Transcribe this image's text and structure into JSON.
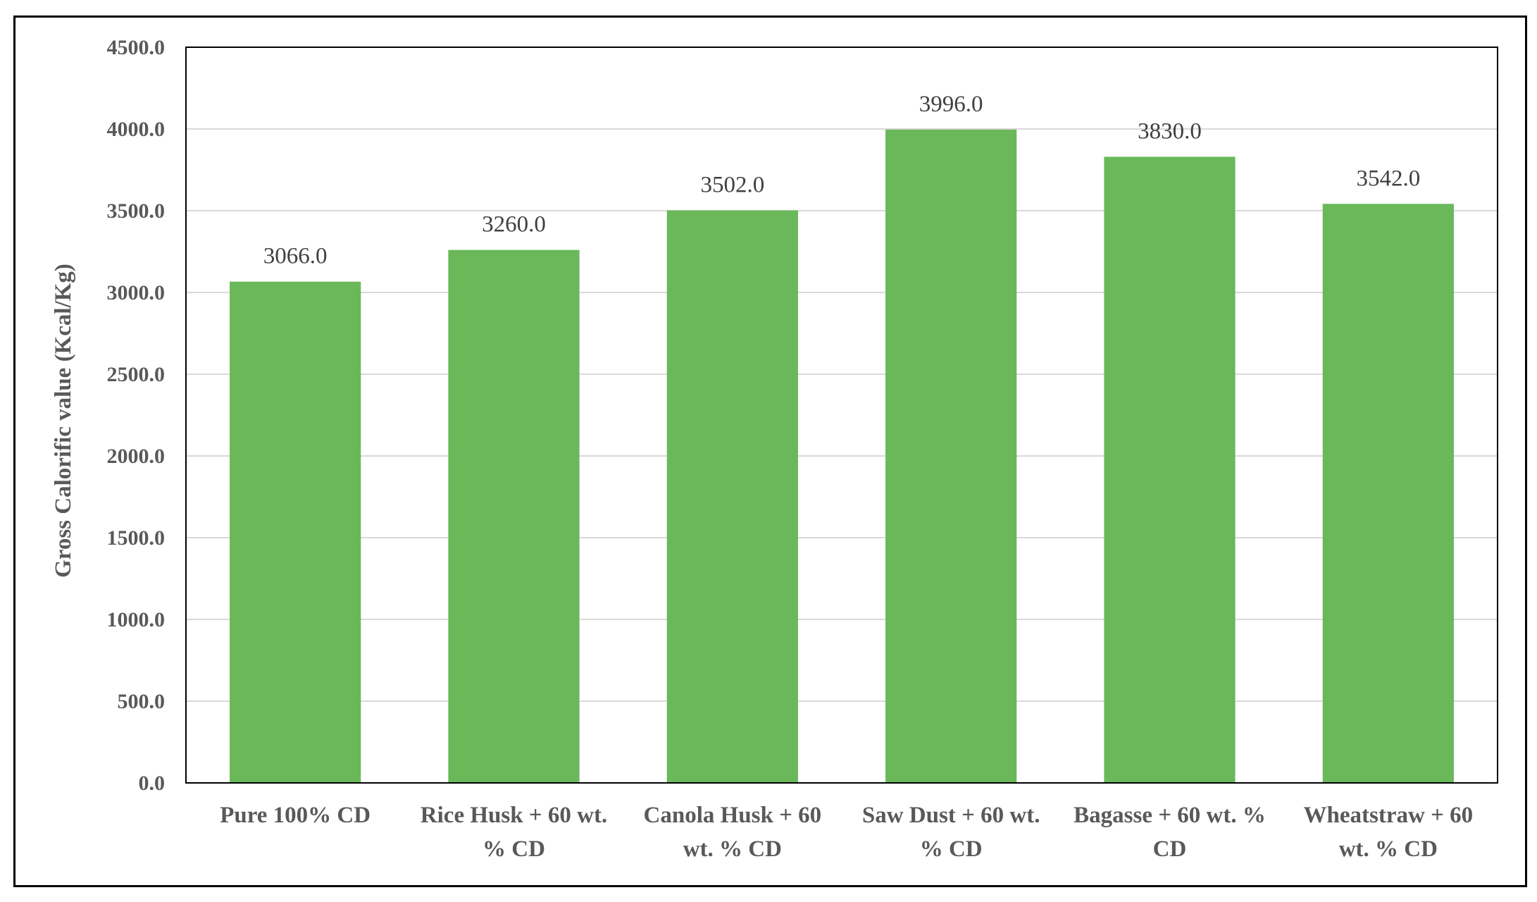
{
  "chart_data": {
    "type": "bar",
    "categories": [
      [
        "Pure 100% CD"
      ],
      [
        "Rice Husk + 60 wt.",
        "% CD"
      ],
      [
        "Canola Husk + 60",
        "wt. % CD"
      ],
      [
        "Saw Dust + 60 wt.",
        "% CD"
      ],
      [
        "Bagasse + 60 wt. %",
        "CD"
      ],
      [
        "Wheatstraw + 60",
        "wt. % CD"
      ]
    ],
    "values": [
      3066.0,
      3260.0,
      3502.0,
      3996.0,
      3830.0,
      3542.0
    ],
    "data_labels": [
      "3066.0",
      "3260.0",
      "3502.0",
      "3996.0",
      "3830.0",
      "3542.0"
    ],
    "title": "",
    "xlabel": "",
    "ylabel": "Gross Calorific value (Kcal/Kg)",
    "ylim": [
      0,
      4500
    ],
    "yticks": [
      "0.0",
      "500.0",
      "1000.0",
      "1500.0",
      "2000.0",
      "2500.0",
      "3000.0",
      "3500.0",
      "4000.0",
      "4500.0"
    ],
    "ytick_values": [
      0,
      500,
      1000,
      1500,
      2000,
      2500,
      3000,
      3500,
      4000,
      4500
    ],
    "grid": true,
    "legend": "none",
    "colors": {
      "bar": "#6ab85a",
      "grid": "#d9d9d9",
      "plot_border": "#000000"
    }
  }
}
